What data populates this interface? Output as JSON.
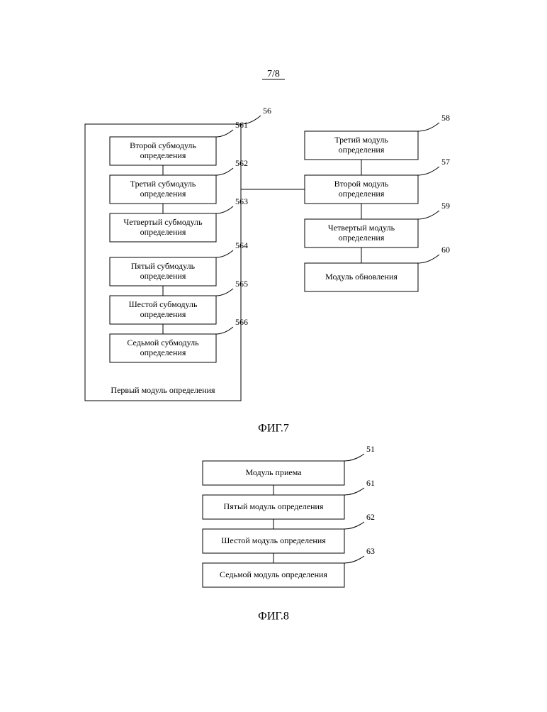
{
  "page_header": "7/8",
  "fig7": {
    "caption": "ФИГ.7",
    "container_label": "Первый модуль определения",
    "container_ref": "56",
    "left_nodes": [
      {
        "id": "n561",
        "label": "Второй субмодуль\nопределения",
        "ref": "561"
      },
      {
        "id": "n562",
        "label": "Третий субмодуль\nопределения",
        "ref": "562"
      },
      {
        "id": "n563",
        "label": "Четвертый субмодуль\nопределения",
        "ref": "563"
      },
      {
        "id": "n564",
        "label": "Пятый субмодуль\nопределения",
        "ref": "564"
      },
      {
        "id": "n565",
        "label": "Шестой субмодуль\nопределения",
        "ref": "565"
      },
      {
        "id": "n566",
        "label": "Седьмой субмодуль\nопределения",
        "ref": "566"
      }
    ],
    "right_nodes": [
      {
        "id": "n58",
        "label": "Третий модуль\nопределения",
        "ref": "58"
      },
      {
        "id": "n57",
        "label": "Второй модуль\nопределения",
        "ref": "57"
      },
      {
        "id": "n59",
        "label": "Четвертый модуль\nопределения",
        "ref": "59"
      },
      {
        "id": "n60",
        "label": "Модуль обновления",
        "ref": "60"
      }
    ]
  },
  "fig8": {
    "caption": "ФИГ.8",
    "nodes": [
      {
        "id": "n51",
        "label": "Модуль приема",
        "ref": "51"
      },
      {
        "id": "n61",
        "label": "Пятый модуль определения",
        "ref": "61"
      },
      {
        "id": "n62",
        "label": "Шестой модуль определения",
        "ref": "62"
      },
      {
        "id": "n63",
        "label": "Седьмой модуль определения",
        "ref": "63"
      }
    ]
  },
  "style": {
    "stroke": "#000000",
    "stroke_width": 1,
    "font_size_box": 12,
    "font_size_ref": 12,
    "font_size_caption": 16,
    "font_size_header": 14,
    "box_fill": "#ffffff",
    "lead_len": 30
  }
}
